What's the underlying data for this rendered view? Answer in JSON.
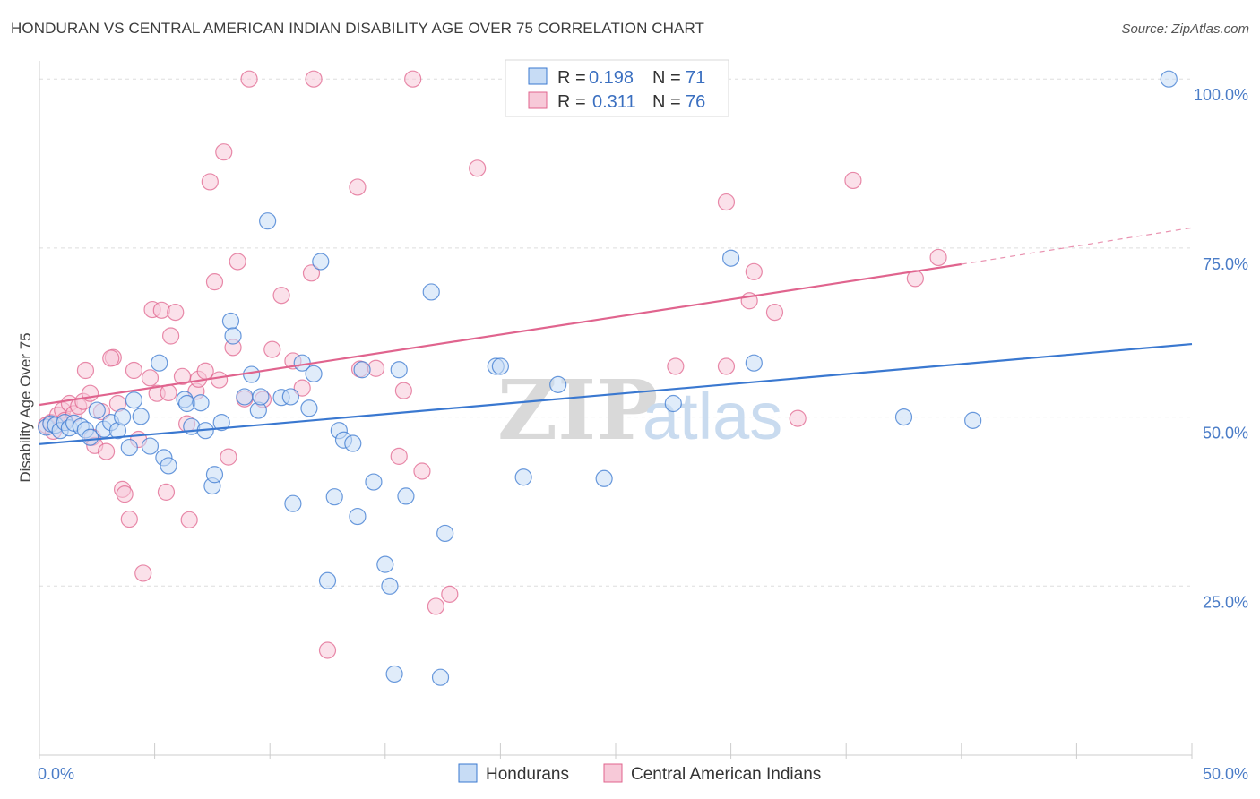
{
  "title": "HONDURAN VS CENTRAL AMERICAN INDIAN DISABILITY AGE OVER 75 CORRELATION CHART",
  "source": "Source: ZipAtlas.com",
  "watermark": {
    "zip": "ZIP",
    "atlas": "atlas"
  },
  "colors": {
    "blue": "#3a78d0",
    "blue_fill": "#c7dcf5",
    "pink": "#e0648e",
    "pink_fill": "#f7c9d8",
    "grid": "#dddddd",
    "axis_text": "#4a7cc7"
  },
  "legend": {
    "rows": [
      {
        "r_label": "R =",
        "r_value": "0.198",
        "n_label": "N =",
        "n_value": "71",
        "series": "blue"
      },
      {
        "r_label": "R =",
        "r_value": "0.311",
        "n_label": "N =",
        "n_value": "76",
        "series": "pink"
      }
    ]
  },
  "bottom_legend": [
    {
      "label": "Hondurans",
      "series": "blue"
    },
    {
      "label": "Central American Indians",
      "series": "pink"
    }
  ],
  "chart_data": {
    "type": "scatter",
    "title": "HONDURAN VS CENTRAL AMERICAN INDIAN DISABILITY AGE OVER 75 CORRELATION CHART",
    "xlabel": "",
    "ylabel": "Disability Age Over 75",
    "xlim": [
      0,
      50
    ],
    "ylim": [
      0,
      104
    ],
    "x_tick_labels": [
      "0.0%",
      "50.0%"
    ],
    "y_ticks": [
      25,
      50,
      75,
      100
    ],
    "y_tick_labels": [
      "25.0%",
      "50.0%",
      "75.0%",
      "100.0%"
    ],
    "grid": true,
    "legend_position": "top-center",
    "series": [
      {
        "name": "Hondurans",
        "color": "blue",
        "trend": {
          "x": [
            0,
            50
          ],
          "y": [
            46.0,
            60.8
          ],
          "dashed_from": null
        },
        "points": [
          [
            0.3,
            48.5
          ],
          [
            0.5,
            49.0
          ],
          [
            0.7,
            48.8
          ],
          [
            0.9,
            48.0
          ],
          [
            1.1,
            49.2
          ],
          [
            1.3,
            48.4
          ],
          [
            1.5,
            49.1
          ],
          [
            1.8,
            48.6
          ],
          [
            2.0,
            48.1
          ],
          [
            2.2,
            47.0
          ],
          [
            2.5,
            51.0
          ],
          [
            2.8,
            48.2
          ],
          [
            3.1,
            49.2
          ],
          [
            3.4,
            48.0
          ],
          [
            3.6,
            50.0
          ],
          [
            3.9,
            45.5
          ],
          [
            4.1,
            52.5
          ],
          [
            4.4,
            50.1
          ],
          [
            4.8,
            45.7
          ],
          [
            5.2,
            58.0
          ],
          [
            5.4,
            44.0
          ],
          [
            5.6,
            42.8
          ],
          [
            6.3,
            52.6
          ],
          [
            6.4,
            52.0
          ],
          [
            6.6,
            48.6
          ],
          [
            7.0,
            52.1
          ],
          [
            7.2,
            48.0
          ],
          [
            7.5,
            39.8
          ],
          [
            7.6,
            41.5
          ],
          [
            7.9,
            49.2
          ],
          [
            8.3,
            64.2
          ],
          [
            8.4,
            62.0
          ],
          [
            8.9,
            53.0
          ],
          [
            9.2,
            56.3
          ],
          [
            9.5,
            51.0
          ],
          [
            9.6,
            53.0
          ],
          [
            9.9,
            79.0
          ],
          [
            10.5,
            52.9
          ],
          [
            10.9,
            53.0
          ],
          [
            11.0,
            37.2
          ],
          [
            11.4,
            58.0
          ],
          [
            11.7,
            51.3
          ],
          [
            11.9,
            56.4
          ],
          [
            12.2,
            73.0
          ],
          [
            12.5,
            25.8
          ],
          [
            12.8,
            38.2
          ],
          [
            13.0,
            48.0
          ],
          [
            13.2,
            46.6
          ],
          [
            13.6,
            46.1
          ],
          [
            13.8,
            35.3
          ],
          [
            14.0,
            57.0
          ],
          [
            14.5,
            40.4
          ],
          [
            15.0,
            28.2
          ],
          [
            15.2,
            25.0
          ],
          [
            15.6,
            57.0
          ],
          [
            15.9,
            38.3
          ],
          [
            17.0,
            68.5
          ],
          [
            17.4,
            11.5
          ],
          [
            17.6,
            32.8
          ],
          [
            19.8,
            57.5
          ],
          [
            20.0,
            57.5
          ],
          [
            21.0,
            41.1
          ],
          [
            22.5,
            54.8
          ],
          [
            24.5,
            40.9
          ],
          [
            27.5,
            52.0
          ],
          [
            30.0,
            73.5
          ],
          [
            31.0,
            58.0
          ],
          [
            37.5,
            50.0
          ],
          [
            40.5,
            49.5
          ],
          [
            49.0,
            100.0
          ],
          [
            15.4,
            12.0
          ]
        ]
      },
      {
        "name": "Central American Indians",
        "color": "pink",
        "trend": {
          "x": [
            0,
            40
          ],
          "y": [
            51.8,
            72.6
          ],
          "dashed_from": 40,
          "dashed_to": [
            50,
            78.0
          ]
        },
        "points": [
          [
            0.3,
            48.8
          ],
          [
            0.5,
            49.2
          ],
          [
            0.6,
            47.9
          ],
          [
            0.8,
            50.3
          ],
          [
            1.0,
            51.0
          ],
          [
            1.1,
            49.5
          ],
          [
            1.3,
            52.0
          ],
          [
            1.5,
            50.5
          ],
          [
            1.7,
            51.6
          ],
          [
            1.9,
            52.3
          ],
          [
            2.0,
            56.9
          ],
          [
            2.2,
            53.5
          ],
          [
            2.3,
            47.0
          ],
          [
            2.4,
            45.8
          ],
          [
            2.7,
            50.8
          ],
          [
            2.9,
            44.9
          ],
          [
            3.2,
            58.8
          ],
          [
            3.4,
            52.0
          ],
          [
            3.6,
            39.3
          ],
          [
            3.7,
            38.6
          ],
          [
            3.9,
            34.9
          ],
          [
            4.1,
            56.9
          ],
          [
            4.3,
            46.7
          ],
          [
            4.5,
            26.9
          ],
          [
            4.8,
            55.8
          ],
          [
            4.9,
            65.9
          ],
          [
            5.1,
            53.5
          ],
          [
            5.3,
            65.8
          ],
          [
            5.5,
            38.9
          ],
          [
            5.7,
            62.0
          ],
          [
            5.9,
            65.5
          ],
          [
            6.2,
            56.0
          ],
          [
            6.4,
            49.0
          ],
          [
            6.5,
            34.8
          ],
          [
            6.8,
            53.8
          ],
          [
            6.9,
            55.6
          ],
          [
            7.2,
            56.8
          ],
          [
            7.4,
            84.8
          ],
          [
            7.6,
            70.0
          ],
          [
            7.8,
            55.5
          ],
          [
            8.0,
            89.2
          ],
          [
            8.2,
            44.1
          ],
          [
            8.4,
            60.3
          ],
          [
            8.6,
            73.0
          ],
          [
            8.9,
            52.7
          ],
          [
            9.1,
            100.0
          ],
          [
            9.7,
            52.6
          ],
          [
            10.1,
            60.0
          ],
          [
            10.5,
            68.0
          ],
          [
            11.0,
            58.3
          ],
          [
            11.4,
            54.3
          ],
          [
            11.8,
            71.3
          ],
          [
            11.9,
            100.0
          ],
          [
            12.5,
            15.5
          ],
          [
            13.8,
            84.0
          ],
          [
            14.6,
            57.2
          ],
          [
            15.6,
            44.2
          ],
          [
            15.8,
            53.9
          ],
          [
            16.2,
            100.0
          ],
          [
            16.6,
            42.0
          ],
          [
            17.2,
            22.0
          ],
          [
            17.8,
            23.8
          ],
          [
            19.0,
            86.8
          ],
          [
            27.6,
            57.5
          ],
          [
            29.8,
            81.8
          ],
          [
            29.8,
            57.5
          ],
          [
            30.8,
            67.2
          ],
          [
            31.0,
            71.5
          ],
          [
            31.9,
            65.5
          ],
          [
            32.9,
            49.8
          ],
          [
            35.3,
            85.0
          ],
          [
            38.0,
            70.5
          ],
          [
            39.0,
            73.6
          ],
          [
            13.9,
            57.1
          ],
          [
            5.6,
            53.6
          ],
          [
            3.1,
            58.7
          ]
        ]
      }
    ]
  }
}
